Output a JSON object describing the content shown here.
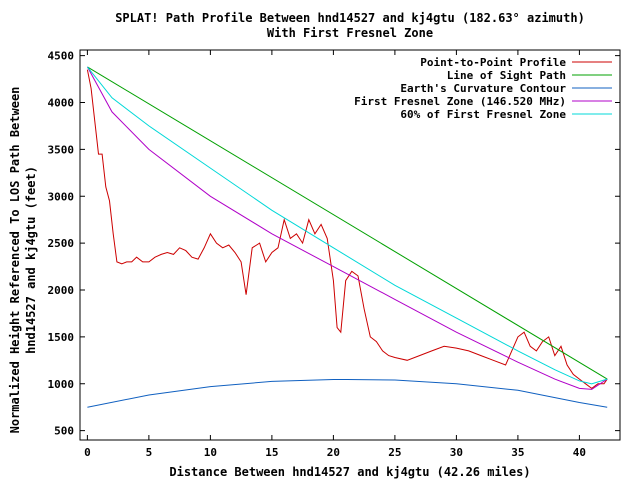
{
  "chart_data": {
    "type": "line",
    "title": "SPLAT! Path Profile Between hnd14527 and kj4gtu (182.63° azimuth)",
    "subtitle": "With First Fresnel Zone",
    "xlabel": "Distance Between hnd14527 and kj4gtu (42.26 miles)",
    "ylabel_line1": "Normalized Height Referenced To LOS Path Between",
    "ylabel_line2": "hnd14527 and kj4gtu (feet)",
    "xlim": [
      -0.6,
      43.3
    ],
    "ylim": [
      400,
      4560
    ],
    "x_ticks": [
      0,
      5,
      10,
      15,
      20,
      25,
      30,
      35,
      40
    ],
    "y_ticks": [
      500,
      1000,
      1500,
      2000,
      2500,
      3000,
      3500,
      4000,
      4500
    ],
    "grid": false,
    "legend_position": "top-right",
    "series": [
      {
        "name": "Point-to-Point Profile",
        "color": "#cc0000",
        "x": [
          0,
          0.3,
          0.6,
          0.9,
          1.2,
          1.5,
          1.8,
          2.1,
          2.4,
          2.8,
          3.2,
          3.6,
          4.0,
          4.5,
          5.0,
          5.5,
          6.0,
          6.5,
          7.0,
          7.5,
          8.0,
          8.5,
          9.0,
          9.5,
          10.0,
          10.5,
          11.0,
          11.5,
          12.0,
          12.5,
          12.9,
          13.4,
          14.0,
          14.5,
          15.0,
          15.5,
          16.0,
          16.5,
          17.0,
          17.5,
          18.0,
          18.5,
          19.0,
          19.5,
          20.0,
          20.3,
          20.6,
          21.0,
          21.5,
          22.0,
          22.5,
          23.0,
          23.5,
          24.0,
          24.5,
          25.0,
          26.0,
          27.0,
          28.0,
          29.0,
          30.0,
          31.0,
          32.0,
          33.0,
          34.0,
          35.0,
          35.5,
          36.0,
          36.5,
          37.0,
          37.5,
          38.0,
          38.5,
          39.0,
          39.5,
          40.0,
          40.5,
          41.0,
          41.5,
          42.0,
          42.26
        ],
        "values": [
          4350,
          4150,
          3800,
          3450,
          3450,
          3100,
          2950,
          2600,
          2300,
          2280,
          2300,
          2300,
          2350,
          2300,
          2300,
          2350,
          2380,
          2400,
          2380,
          2450,
          2420,
          2350,
          2330,
          2450,
          2600,
          2500,
          2450,
          2480,
          2400,
          2300,
          1950,
          2450,
          2500,
          2300,
          2400,
          2450,
          2750,
          2550,
          2600,
          2500,
          2750,
          2600,
          2700,
          2550,
          2100,
          1600,
          1550,
          2100,
          2200,
          2150,
          1800,
          1500,
          1450,
          1350,
          1300,
          1280,
          1250,
          1300,
          1350,
          1400,
          1380,
          1350,
          1300,
          1250,
          1200,
          1500,
          1550,
          1400,
          1350,
          1450,
          1500,
          1300,
          1400,
          1200,
          1100,
          1050,
          1000,
          950,
          1000,
          1000,
          1050
        ]
      },
      {
        "name": "Line of Sight Path",
        "color": "#00a000",
        "x": [
          0,
          42.26
        ],
        "values": [
          4380,
          1050
        ]
      },
      {
        "name": "Earth's Curvature Contour",
        "color": "#1060c0",
        "x": [
          0,
          5,
          10,
          15,
          20,
          21.13,
          25,
          30,
          35,
          40,
          42.26
        ],
        "values": [
          750,
          880,
          970,
          1025,
          1045,
          1045,
          1040,
          1000,
          930,
          800,
          750
        ]
      },
      {
        "name": "First Fresnel Zone (146.520 MHz)",
        "color": "#b000c8",
        "x": [
          0,
          2,
          5,
          10,
          15,
          20,
          25,
          30,
          35,
          38,
          40,
          41,
          42.26
        ],
        "values": [
          4380,
          3900,
          3500,
          3000,
          2600,
          2250,
          1900,
          1550,
          1230,
          1050,
          950,
          940,
          1050
        ]
      },
      {
        "name": "60% of First Fresnel Zone",
        "color": "#00d8d8",
        "x": [
          0,
          2,
          5,
          10,
          15,
          20,
          25,
          30,
          35,
          38,
          40,
          41,
          42.26
        ],
        "values": [
          4380,
          4050,
          3750,
          3300,
          2850,
          2450,
          2050,
          1700,
          1350,
          1150,
          1030,
          1000,
          1050
        ]
      }
    ]
  }
}
